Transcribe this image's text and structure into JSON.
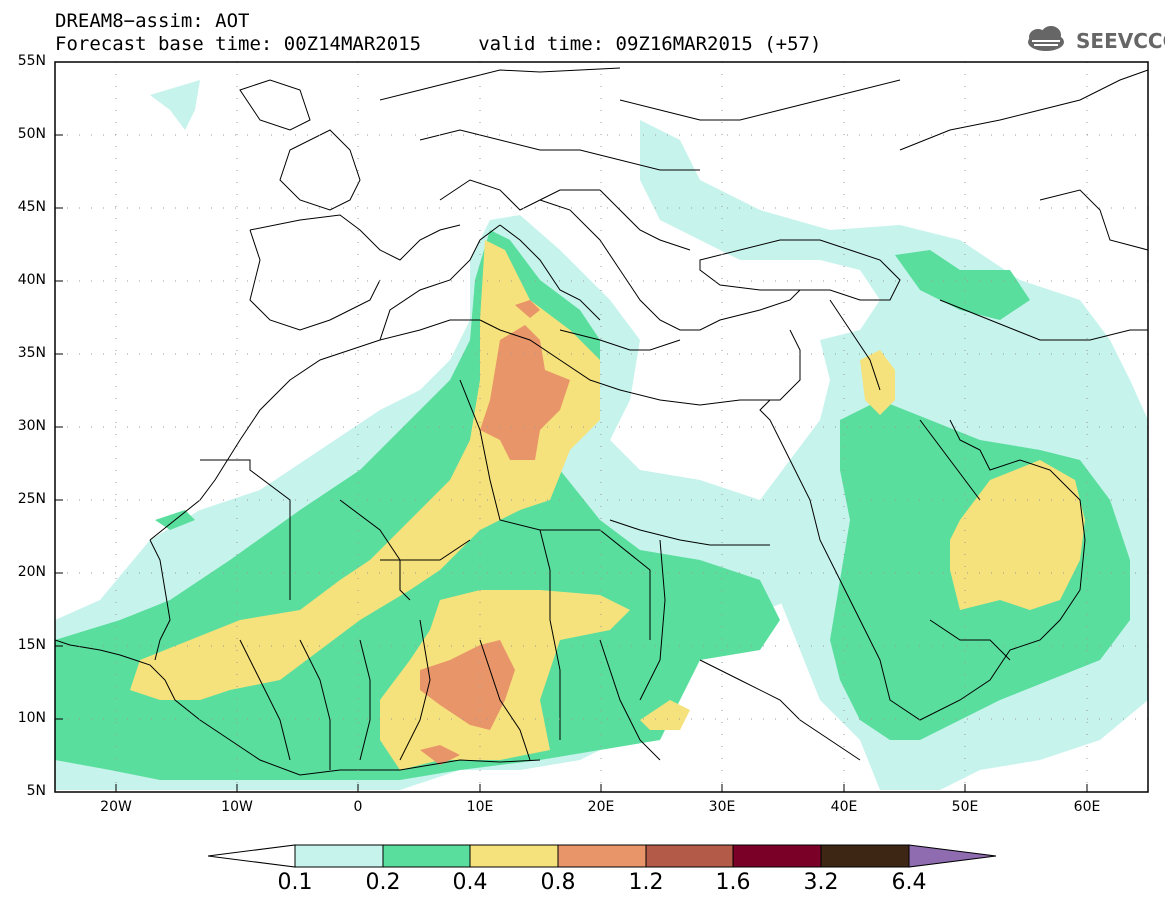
{
  "title": {
    "line1": "DREAM8−assim: AOT",
    "line2": "Forecast base time: 00Z14MAR2015     valid time: 09Z16MAR2015 (+57)"
  },
  "logo": {
    "text": "SEEVCCC",
    "icon": "cloud-icon"
  },
  "map": {
    "lat_labels": [
      "55N",
      "50N",
      "45N",
      "40N",
      "35N",
      "30N",
      "25N",
      "20N",
      "15N",
      "10N",
      "5N"
    ],
    "lon_labels": [
      "20W",
      "10W",
      "0",
      "10E",
      "20E",
      "30E",
      "40E",
      "50E",
      "60E"
    ],
    "lat_range": [
      5,
      55
    ],
    "lon_range": [
      -25,
      65
    ],
    "grid": true
  },
  "colorbar": {
    "labels": [
      "0.1",
      "0.2",
      "0.4",
      "0.8",
      "1.2",
      "1.6",
      "3.2",
      "6.4"
    ],
    "colors": [
      "#c6f3ec",
      "#5ade9e",
      "#f6e27c",
      "#e8956a",
      "#b35a48",
      "#7a0028",
      "#3d2614",
      "#8f6bb0"
    ],
    "under_color": "#ffffff"
  },
  "colors": {
    "level_01": "#c6f3ec",
    "level_02": "#5ade9e",
    "level_04": "#f6e27c",
    "level_08": "#e8956a",
    "border": "#000000"
  }
}
